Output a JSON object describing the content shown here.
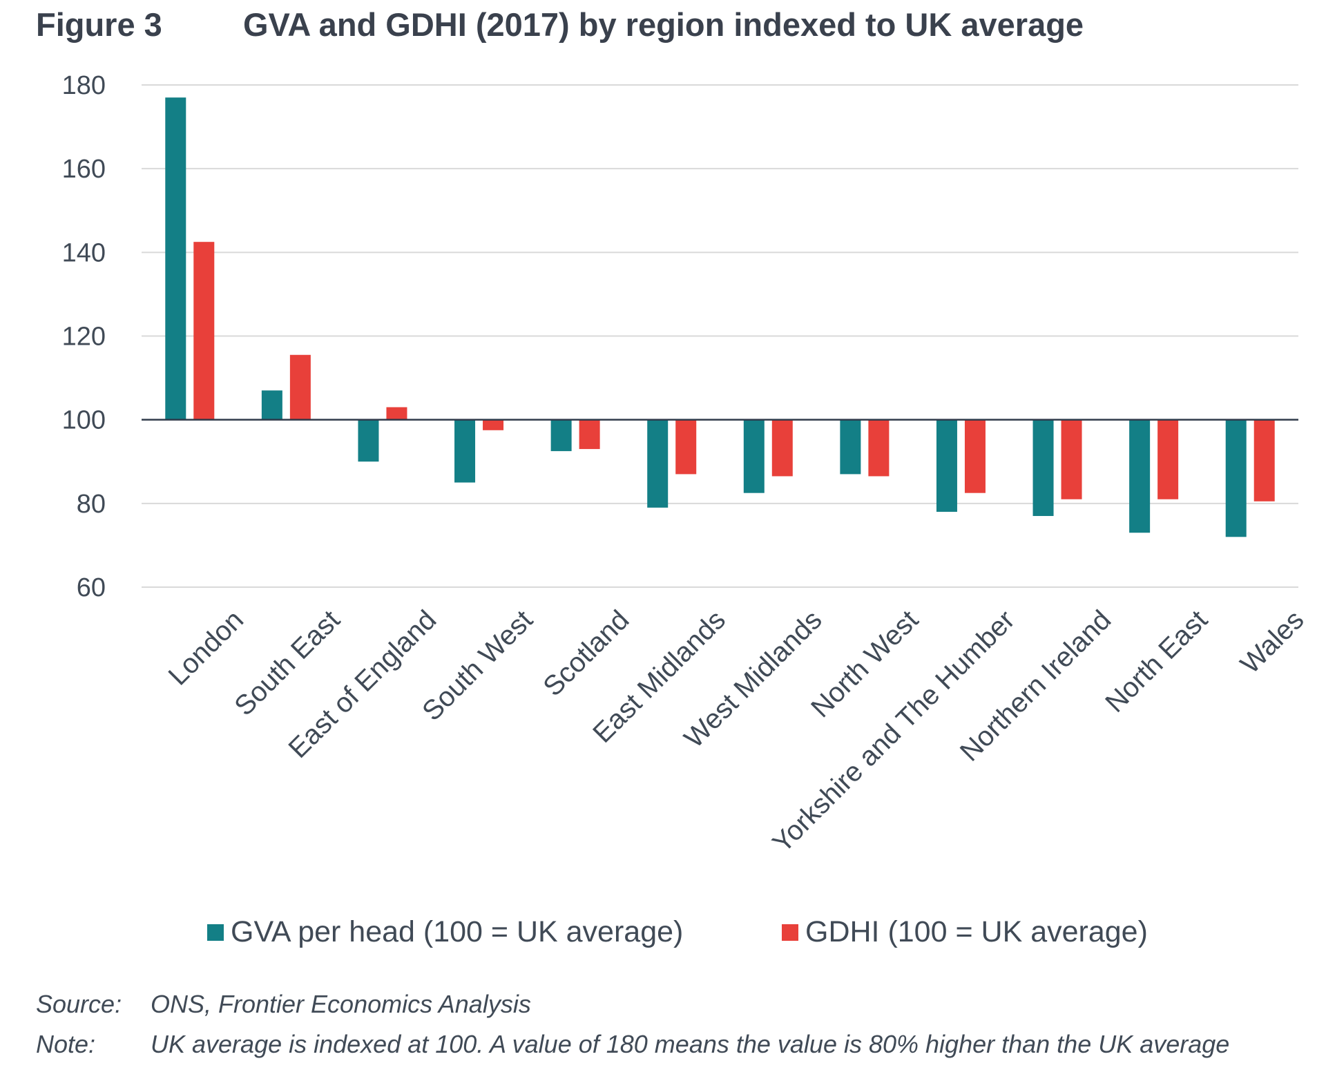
{
  "figure": {
    "label": "Figure 3",
    "title": "GVA and GDHI (2017) by region indexed to UK average",
    "source_label": "Source:",
    "source_text": "ONS, Frontier Economics Analysis",
    "note_label": "Note:",
    "note_text": "UK average is indexed at 100. A value of 180 means the value is 80% higher than the UK average"
  },
  "chart_data": {
    "type": "bar",
    "title": "GVA and GDHI (2017) by region indexed to UK average",
    "xlabel": "",
    "ylabel": "",
    "ylim": [
      60,
      180
    ],
    "yticks": [
      60,
      80,
      100,
      120,
      140,
      160,
      180
    ],
    "baseline": 100,
    "grid": true,
    "legend_position": "bottom",
    "categories": [
      "London",
      "South East",
      "East of England",
      "South West",
      "Scotland",
      "East Midlands",
      "West Midlands",
      "North West",
      "Yorkshire and The Humber",
      "Northern Ireland",
      "North East",
      "Wales"
    ],
    "series": [
      {
        "name": "GVA per head (100 = UK average)",
        "color": "#137f86",
        "values": [
          177,
          107,
          90,
          85,
          92.5,
          79,
          82.5,
          87,
          78,
          77,
          73,
          72
        ]
      },
      {
        "name": "GDHI (100 = UK average)",
        "color": "#e8403a",
        "values": [
          142.5,
          115.5,
          103,
          97.5,
          93,
          87,
          86.5,
          86.5,
          82.5,
          81,
          81,
          80.5
        ]
      }
    ]
  }
}
